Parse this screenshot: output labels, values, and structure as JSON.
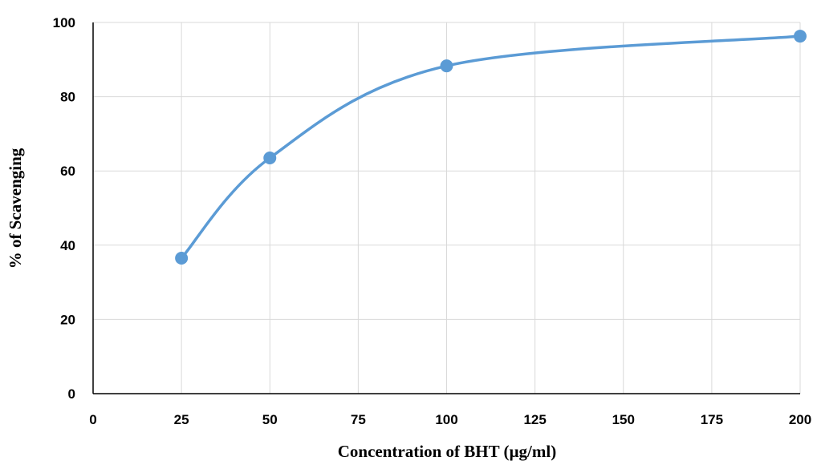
{
  "chart_data": {
    "type": "scatter",
    "title": "",
    "xlabel": "Concentration of BHT (µg/ml)",
    "ylabel": "% of Scavenging",
    "xlim": [
      0,
      200
    ],
    "ylim": [
      0,
      100
    ],
    "xticks": [
      0,
      25,
      50,
      75,
      100,
      125,
      150,
      175,
      200
    ],
    "yticks": [
      0,
      20,
      40,
      60,
      80,
      100
    ],
    "grid": true,
    "legend": "none",
    "line_style": "smooth",
    "series": [
      {
        "x": [
          25,
          50,
          100,
          200
        ],
        "y": [
          36.5,
          63.5,
          88.3,
          96.3
        ],
        "color": "#5B9BD5"
      }
    ],
    "colors": {
      "series": "#5B9BD5",
      "grid": "#D9D9D9",
      "axis": "#000000"
    }
  }
}
